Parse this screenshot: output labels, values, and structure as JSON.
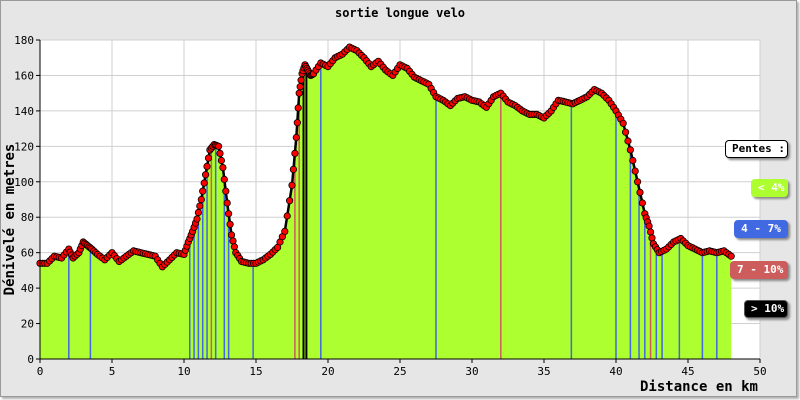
{
  "chart_data": {
    "type": "area",
    "title": "sortie longue velo",
    "xlabel": "Distance en km",
    "ylabel": "Dénivelé en metres",
    "xlim": [
      0,
      50
    ],
    "ylim": [
      0,
      180
    ],
    "x_ticks": [
      "0",
      "5",
      "10",
      "15",
      "20",
      "25",
      "30",
      "35",
      "40",
      "45",
      "50"
    ],
    "y_ticks": [
      "0",
      "20",
      "40",
      "60",
      "80",
      "100",
      "120",
      "140",
      "160",
      "180"
    ],
    "grid": true,
    "legend": {
      "title": "Pentes :",
      "placement": "right",
      "items": [
        {
          "label": "< 4%",
          "color": "#adff2f"
        },
        {
          "label": "4 - 7%",
          "color": "#4169e1"
        },
        {
          "label": "7 - 10%",
          "color": "#cd5c5c"
        },
        {
          "label": "> 10%",
          "color": "#000000"
        }
      ]
    },
    "x": [
      0,
      0.5,
      1,
      1.5,
      2,
      2.3,
      2.7,
      3,
      3.3,
      3.6,
      4,
      4.5,
      5,
      5.5,
      6,
      6.5,
      7,
      7.5,
      8,
      8.5,
      9,
      9.5,
      10,
      10.3,
      10.6,
      10.9,
      11.2,
      11.5,
      11.8,
      12.1,
      12.4,
      12.7,
      13,
      13.3,
      13.6,
      14,
      14.5,
      15,
      15.5,
      16,
      16.5,
      17,
      17.5,
      17.8,
      18,
      18.2,
      18.4,
      18.6,
      18.8,
      19,
      19.5,
      20,
      20.5,
      21,
      21.5,
      22,
      22.5,
      23,
      23.5,
      24,
      24.5,
      25,
      25.5,
      26,
      26.5,
      27,
      27.5,
      28,
      28.5,
      29,
      29.5,
      30,
      30.5,
      31,
      31.5,
      32,
      32.5,
      33,
      33.5,
      34,
      34.5,
      35,
      35.5,
      36,
      36.5,
      37,
      37.5,
      38,
      38.5,
      39,
      39.5,
      40,
      40.5,
      41,
      41.5,
      42,
      42.3,
      42.6,
      43,
      43.5,
      44,
      44.5,
      45,
      45.5,
      46,
      46.5,
      47,
      47.5,
      48
    ],
    "y": [
      54,
      54,
      58,
      57,
      62,
      57,
      60,
      66,
      64,
      62,
      59,
      56,
      60,
      55,
      58,
      61,
      60,
      59,
      58,
      52,
      56,
      60,
      59,
      66,
      72,
      79,
      90,
      104,
      118,
      121,
      120,
      108,
      88,
      70,
      60,
      55,
      54,
      54,
      56,
      59,
      63,
      72,
      98,
      125,
      150,
      161,
      166,
      163,
      160,
      161,
      167,
      165,
      170,
      172,
      176,
      174,
      170,
      165,
      168,
      163,
      160,
      166,
      164,
      159,
      157,
      155,
      148,
      146,
      143,
      147,
      148,
      146,
      145,
      142,
      148,
      150,
      145,
      143,
      140,
      138,
      138,
      136,
      140,
      146,
      145,
      144,
      146,
      148,
      152,
      150,
      146,
      140,
      133,
      118,
      100,
      82,
      75,
      65,
      60,
      62,
      66,
      68,
      64,
      62,
      60,
      61,
      60,
      61,
      58
    ],
    "slope_bars": [
      {
        "x": 2,
        "class": "4 - 7%"
      },
      {
        "x": 3.5,
        "class": "4 - 7%"
      },
      {
        "x": 10.4,
        "class": "4 - 7%"
      },
      {
        "x": 10.7,
        "class": "4 - 7%"
      },
      {
        "x": 11.0,
        "class": "4 - 7%"
      },
      {
        "x": 11.3,
        "class": "4 - 7%"
      },
      {
        "x": 11.6,
        "class": "4 - 7%"
      },
      {
        "x": 11.9,
        "class": "7 - 10%"
      },
      {
        "x": 12.2,
        "class": "4 - 7%"
      },
      {
        "x": 12.8,
        "class": "4 - 7%"
      },
      {
        "x": 13.1,
        "class": "4 - 7%"
      },
      {
        "x": 14.8,
        "class": "4 - 7%"
      },
      {
        "x": 17.7,
        "class": "7 - 10%"
      },
      {
        "x": 18.0,
        "class": "7 - 10%"
      },
      {
        "x": 18.3,
        "class": "> 10%"
      },
      {
        "x": 18.5,
        "class": "> 10%"
      },
      {
        "x": 19.5,
        "class": "4 - 7%"
      },
      {
        "x": 27.5,
        "class": "4 - 7%"
      },
      {
        "x": 32.0,
        "class": "7 - 10%"
      },
      {
        "x": 36.9,
        "class": "4 - 7%"
      },
      {
        "x": 40.0,
        "class": "4 - 7%"
      },
      {
        "x": 41.0,
        "class": "4 - 7%"
      },
      {
        "x": 41.6,
        "class": "4 - 7%"
      },
      {
        "x": 42.0,
        "class": "4 - 7%"
      },
      {
        "x": 42.4,
        "class": "7 - 10%"
      },
      {
        "x": 42.8,
        "class": "4 - 7%"
      },
      {
        "x": 43.2,
        "class": "4 - 7%"
      },
      {
        "x": 44.4,
        "class": "4 - 7%"
      },
      {
        "x": 46.0,
        "class": "4 - 7%"
      },
      {
        "x": 47.0,
        "class": "4 - 7%"
      }
    ],
    "colors": {
      "fill": "#adff2f",
      "outline": "#000000",
      "marker": "#ff0000",
      "marker_edge": "#000000",
      "grid": "#d0d0d0",
      "plot_bg": "#ffffff"
    }
  }
}
